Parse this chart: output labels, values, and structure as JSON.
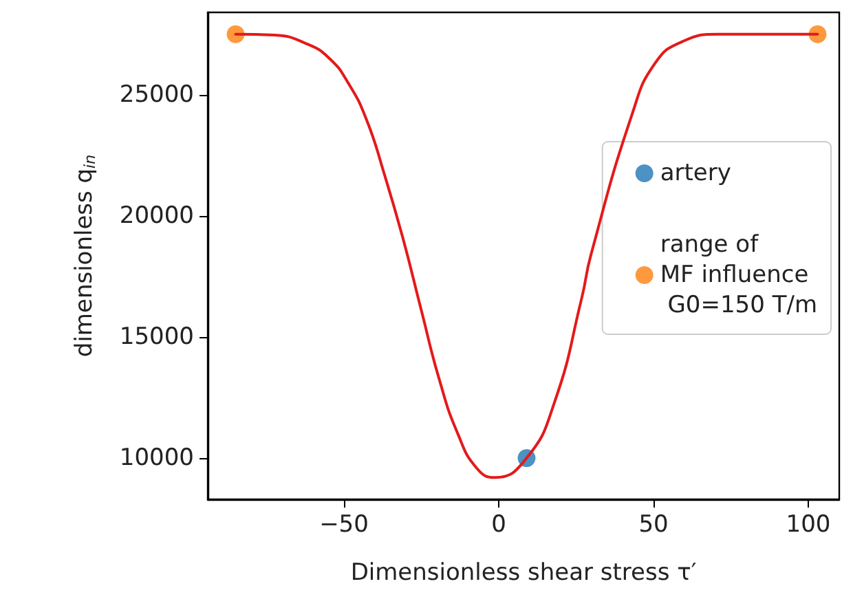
{
  "chart_data": {
    "type": "scatter",
    "xlabel": "Dimensionless shear stress τ′",
    "ylabel": "dimensionless q$_{in}$",
    "xlim": [
      -94,
      110
    ],
    "xticks": [
      -50,
      0,
      50,
      100
    ],
    "ylim": [
      8300,
      28400
    ],
    "yticks": [
      10000,
      15000,
      20000,
      25000
    ],
    "grid": false,
    "legend": "right",
    "marker": "circle",
    "series": [
      {
        "type": "line",
        "color": "#e41a1a",
        "marker": "none",
        "line_style": "solid",
        "x": [
          -85,
          -72.4,
          -62,
          -54.7,
          -48.7,
          -42.8,
          -36.9,
          -31,
          -25,
          -19.1,
          -13.2,
          -7.2,
          -1.3,
          9,
          18,
          26.8,
          29.8,
          43.1,
          50.5,
          59.4,
          71.3,
          103
        ],
        "values": [
          27500,
          27460,
          27100,
          26500,
          25500,
          24000,
          21700,
          19100,
          16100,
          13200,
          11000,
          9600,
          9200,
          10000,
          12300,
          16600,
          18400,
          24200,
          26300,
          27200,
          27500,
          27500
        ]
      },
      {
        "name": "artery",
        "color": "#1f77b4",
        "x": [
          9
        ],
        "values": [
          10000
        ]
      },
      {
        "name": "range of\nMF influence\n G0=150 T/m",
        "color": "#ff7f0e",
        "x": [
          -85,
          103
        ],
        "values": [
          27500,
          27500
        ]
      }
    ]
  }
}
